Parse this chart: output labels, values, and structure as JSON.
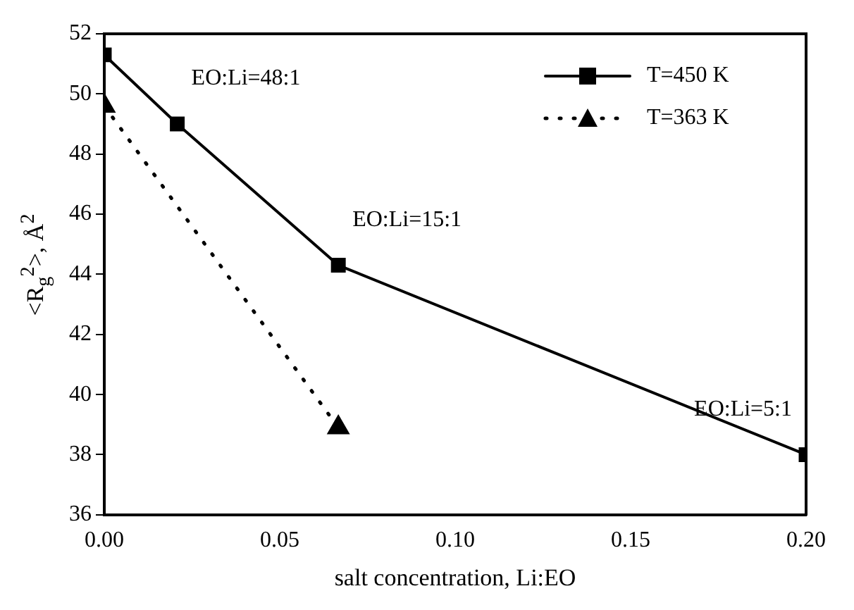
{
  "chart_data": {
    "type": "line",
    "xlabel": "salt concentration, Li:EO",
    "ylabel": "<R$_{g}$$^{2}$>, Å$^{2}$",
    "series": [
      {
        "name": "T=450 K",
        "color": "#000000",
        "marker": "square",
        "line_style": "solid",
        "x": [
          0,
          0.0208,
          0.0667,
          0.2
        ],
        "values": [
          51.3,
          49.0,
          44.3,
          38.0
        ]
      },
      {
        "name": "T=363 K",
        "color": "#000000",
        "marker": "triangle",
        "line_style": "dotted",
        "x": [
          0,
          0.0667
        ],
        "values": [
          49.6,
          38.9
        ]
      }
    ],
    "annotations": [
      {
        "text": "EO:Li=48:1",
        "x": 0.0208,
        "y": 49.0
      },
      {
        "text": "EO:Li=15:1",
        "x": 0.0667,
        "y": 44.3
      },
      {
        "text": "EO:Li=5:1",
        "x": 0.2,
        "y": 38.0
      }
    ],
    "xlim": [
      0,
      0.2
    ],
    "xticks": [
      {
        "value": 0,
        "label": "0.00"
      },
      0.05,
      {
        "value": 0.1,
        "label": "0.10"
      },
      0.15,
      {
        "value": 0.2,
        "label": "0.20"
      }
    ],
    "ylim": [
      36,
      52
    ],
    "yticks": [
      36,
      38,
      40,
      42,
      44,
      46,
      48,
      50,
      52
    ],
    "grid": false,
    "legend": "top right"
  }
}
